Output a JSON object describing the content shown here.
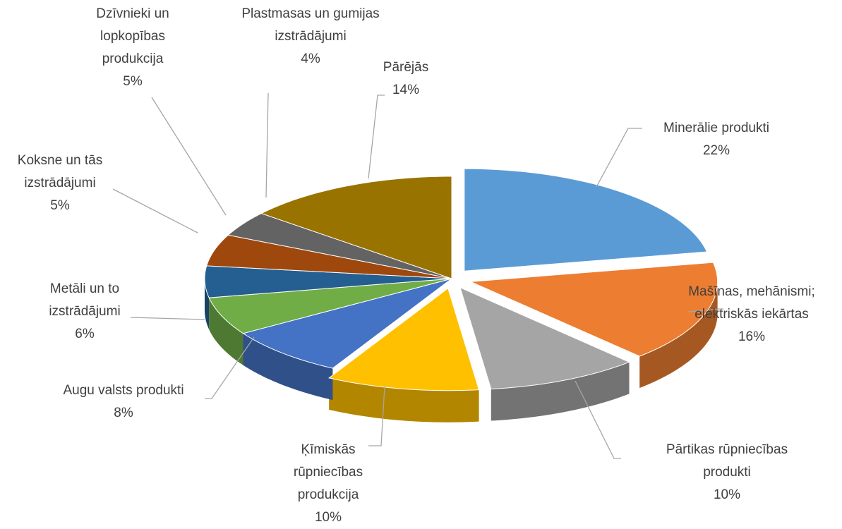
{
  "chart_data": {
    "type": "pie3d",
    "categories": [
      "Minerālie produkti",
      "Mašīnas, mehānismi; elektriskās iekārtas",
      "Pārtikas rūpniecības produkti",
      "Ķīmiskās rūpniecības produkcija",
      "Augu valsts produkti",
      "Metāli un to izstrādājumi",
      "Koksne un tās izstrādājumi",
      "Dzīvnieki un lopkopības produkcija",
      "Plastmasas un gumijas izstrādājumi",
      "Pārējās"
    ],
    "values": [
      22,
      16,
      10,
      10,
      8,
      6,
      5,
      5,
      4,
      14
    ],
    "value_labels": [
      "22%",
      "16%",
      "10%",
      "10%",
      "8%",
      "6%",
      "5%",
      "5%",
      "4%",
      "14%"
    ],
    "colors": [
      "#5b9bd5",
      "#ed7d31",
      "#a5a5a5",
      "#ffc000",
      "#4472c4",
      "#70ad47",
      "#255e91",
      "#9e480e",
      "#636363",
      "#997300"
    ]
  }
}
